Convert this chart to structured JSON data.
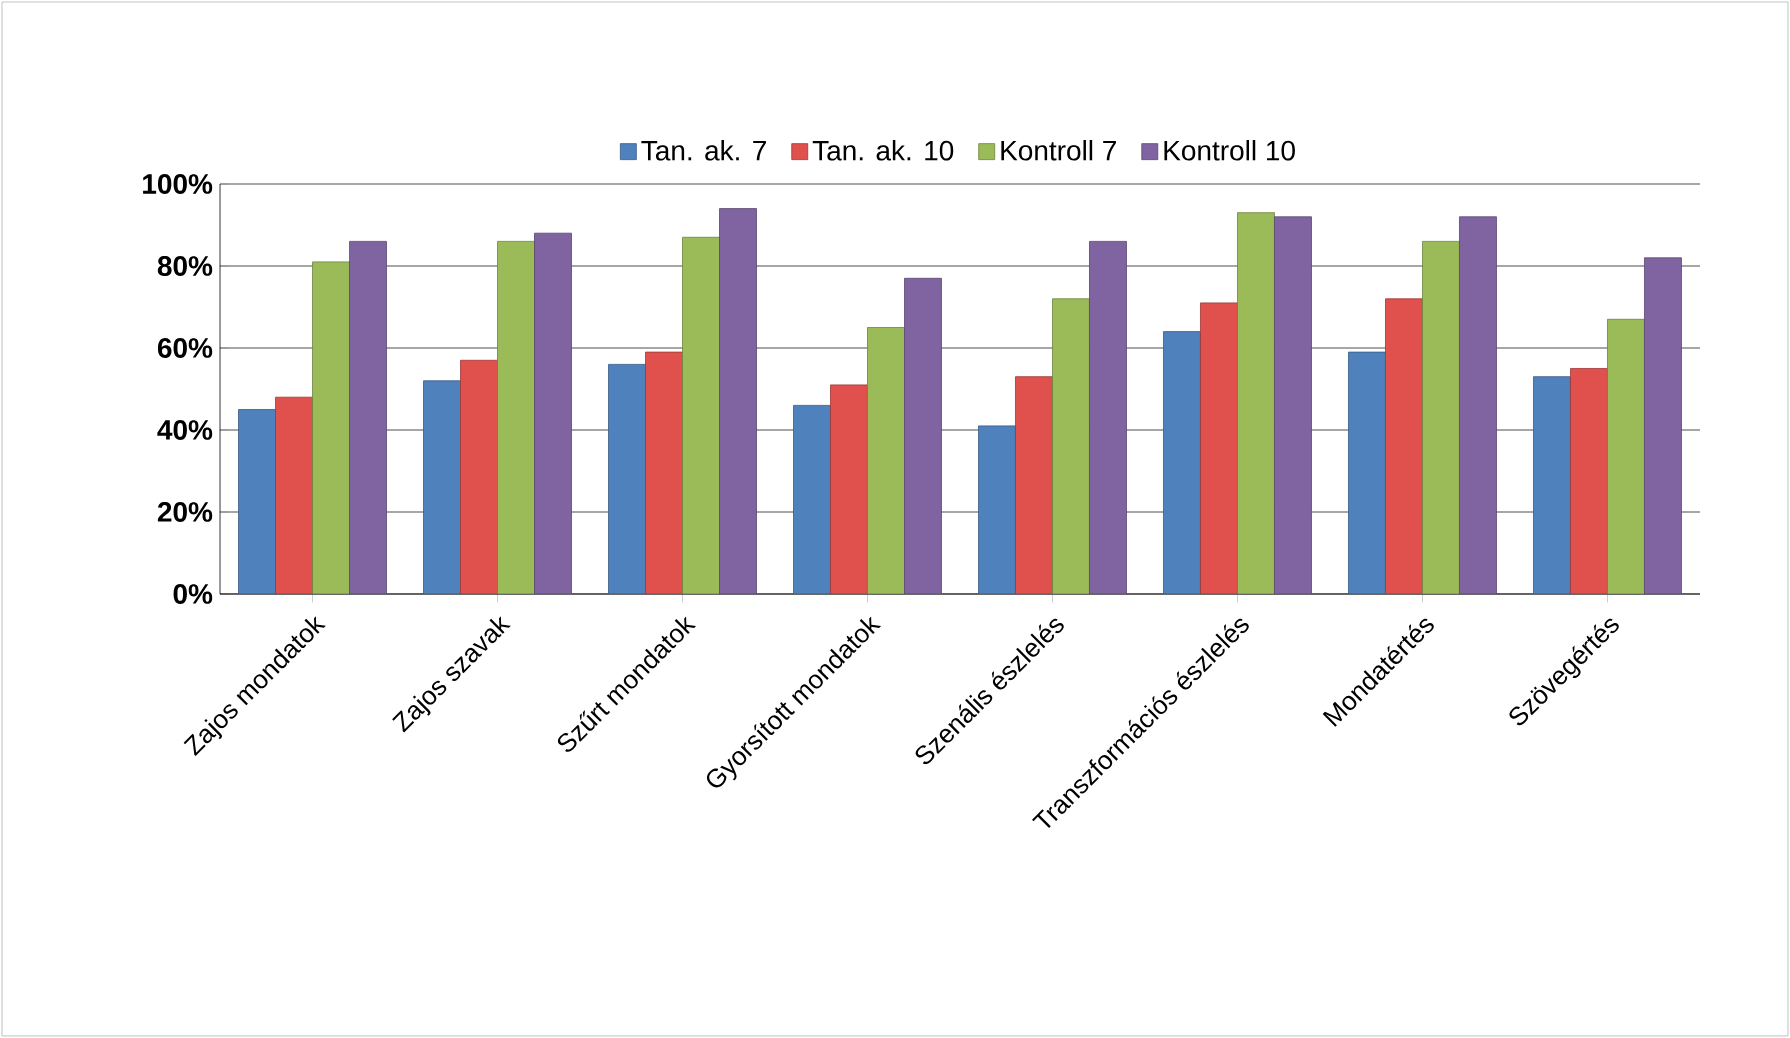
{
  "chart_data": {
    "type": "bar",
    "categories": [
      "Zajos  mondatok",
      "Zajos szavak",
      "Szűrt mondatok",
      "Gyorsított mondatok",
      "Szenális észlelés",
      "Transzformációs észlelés",
      "Mondatértés",
      "Szövegértés"
    ],
    "series": [
      {
        "name": "Tan. ak. 7",
        "color": "#4f81bd",
        "values": [
          45,
          52,
          56,
          46,
          41,
          64,
          59,
          53
        ]
      },
      {
        "name": "Tan. ak. 10",
        "color": "#e0504d",
        "values": [
          48,
          57,
          59,
          51,
          53,
          71,
          72,
          55
        ]
      },
      {
        "name": "Kontroll 7",
        "color": "#9bbb59",
        "values": [
          81,
          86,
          87,
          65,
          72,
          93,
          86,
          67
        ]
      },
      {
        "name": "Kontroll 10",
        "color": "#8064a2",
        "values": [
          86,
          88,
          94,
          77,
          86,
          92,
          92,
          82
        ]
      }
    ],
    "ylim": [
      0,
      100
    ],
    "yticks": [
      {
        "value": 0,
        "label": "0%"
      },
      {
        "value": 20,
        "label": "20%"
      },
      {
        "value": 40,
        "label": "40%"
      },
      {
        "value": 60,
        "label": "60%"
      },
      {
        "value": 80,
        "label": "80%"
      },
      {
        "value": 100,
        "label": "100%"
      }
    ],
    "grid": "y",
    "legend": "top"
  }
}
